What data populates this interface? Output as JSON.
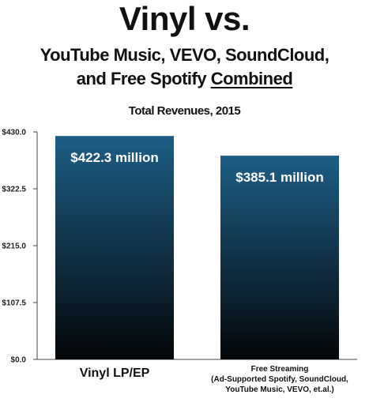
{
  "header": {
    "title": "Vinyl vs.",
    "subtitle_line1": "YouTube Music, VEVO, SoundCloud,",
    "subtitle_line2_prefix": "and Free Spotify",
    "subtitle_line2_emph": "Combined",
    "chart_title": "Total Revenues, 2015"
  },
  "colors": {
    "bar_top": "#1d5e86",
    "bar_bottom": "#040608",
    "axis": "#444444"
  },
  "chart_data": {
    "type": "bar",
    "title": "Total Revenues, 2015",
    "categories": [
      "Vinyl LP/EP",
      "Free Streaming (Ad-Supported Spotify, SoundCloud, YouTube Music, VEVO, et.al.)"
    ],
    "category_label_lines": [
      [
        "Vinyl LP/EP"
      ],
      [
        "Free Streaming",
        "(Ad-Supported Spotify, SoundCloud,",
        "YouTube Music, VEVO, et.al.)"
      ]
    ],
    "values": [
      422.3,
      385.1
    ],
    "value_labels": [
      "$422.3 million",
      "$385.1 million"
    ],
    "ylim": [
      0,
      430
    ],
    "ytick_values": [
      0,
      107.5,
      215,
      322.5,
      430
    ],
    "ytick_labels": [
      "$0.0",
      "$107.5",
      "$215.0",
      "$322.5",
      "$430.0"
    ],
    "xlabel": "",
    "ylabel": "",
    "grid": false,
    "legend": "none"
  }
}
